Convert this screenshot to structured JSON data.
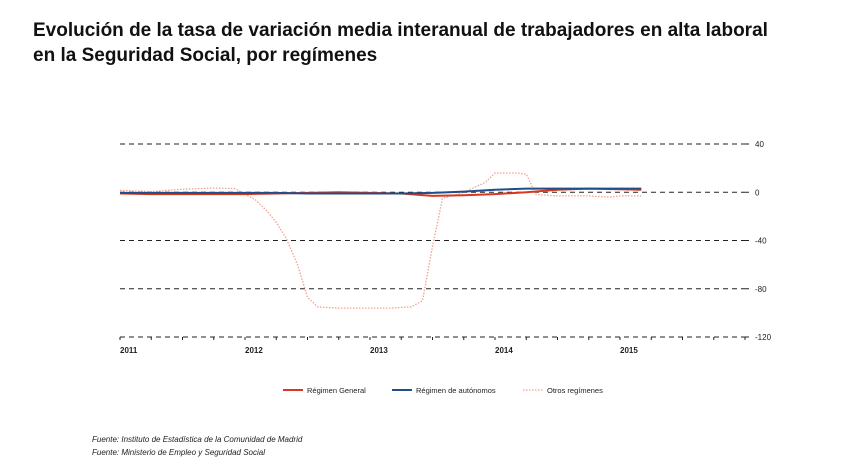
{
  "title_line1": "Evolución de la tasa de variación media interanual de trabajadores en alta laboral",
  "title_line2": "en la Seguridad Social, por  regímenes",
  "sources": [
    "Fuente: Instituto de Estadística de la Comunidad de Madrid",
    "Fuente: Ministerio de Empleo y Seguridad Social"
  ],
  "chart_data": {
    "type": "line",
    "title": "",
    "xlabel": "",
    "ylabel": "",
    "x_ticks": [
      "2011",
      "2012",
      "2013",
      "2014",
      "2015"
    ],
    "y_ticks": [
      "40",
      "0",
      "-40",
      "-80",
      "-120"
    ],
    "ylim": [
      -120,
      40
    ],
    "xlim": [
      2011.0,
      2016.0
    ],
    "grid": "horizontal dashed",
    "legend": "bottom",
    "series": [
      {
        "name": "Régimen General",
        "color": "#d9381e",
        "style": "solid",
        "x": [
          2011.0,
          2011.25,
          2011.5,
          2011.75,
          2012.0,
          2012.25,
          2012.5,
          2012.75,
          2013.0,
          2013.25,
          2013.5,
          2013.75,
          2014.0,
          2014.25,
          2014.5,
          2014.75,
          2015.0,
          2015.17
        ],
        "y": [
          -1,
          -1.5,
          -1.5,
          -1.5,
          -1.5,
          -1,
          -0.5,
          0,
          -0.5,
          -1,
          -3,
          -2.5,
          -1.5,
          0,
          2,
          3,
          2.5,
          2
        ]
      },
      {
        "name": "Régimen de autónomos",
        "color": "#1f4e8c",
        "style": "solid",
        "x": [
          2011.0,
          2011.25,
          2011.5,
          2011.75,
          2012.0,
          2012.25,
          2012.5,
          2012.75,
          2013.0,
          2013.25,
          2013.5,
          2013.75,
          2014.0,
          2014.25,
          2014.5,
          2014.75,
          2015.0,
          2015.17
        ],
        "y": [
          -0.5,
          -0.5,
          -0.5,
          -0.5,
          -0.5,
          -0.5,
          -1,
          -1,
          -1,
          -1,
          -0.5,
          0.5,
          2,
          3,
          3,
          3,
          3,
          3
        ]
      },
      {
        "name": "Otros regímenes",
        "color": "#f4a08a",
        "style": "dotted",
        "x": [
          2011.0,
          2011.25,
          2011.5,
          2011.75,
          2011.92,
          2012.08,
          2012.17,
          2012.25,
          2012.33,
          2012.42,
          2012.5,
          2012.58,
          2012.75,
          2013.0,
          2013.17,
          2013.33,
          2013.42,
          2013.5,
          2013.58,
          2013.75,
          2013.92,
          2014.0,
          2014.17,
          2014.25,
          2014.33,
          2014.5,
          2014.75,
          2014.92,
          2015.0,
          2015.17
        ],
        "y": [
          1.5,
          0.5,
          2.5,
          3.5,
          3,
          -6,
          -15,
          -25,
          -38,
          -60,
          -87,
          -95,
          -96,
          -96,
          -96,
          -95,
          -90,
          -45,
          -5,
          0,
          8,
          16,
          16,
          15,
          -2,
          -3,
          -3,
          -4,
          -3,
          -3
        ]
      }
    ]
  }
}
